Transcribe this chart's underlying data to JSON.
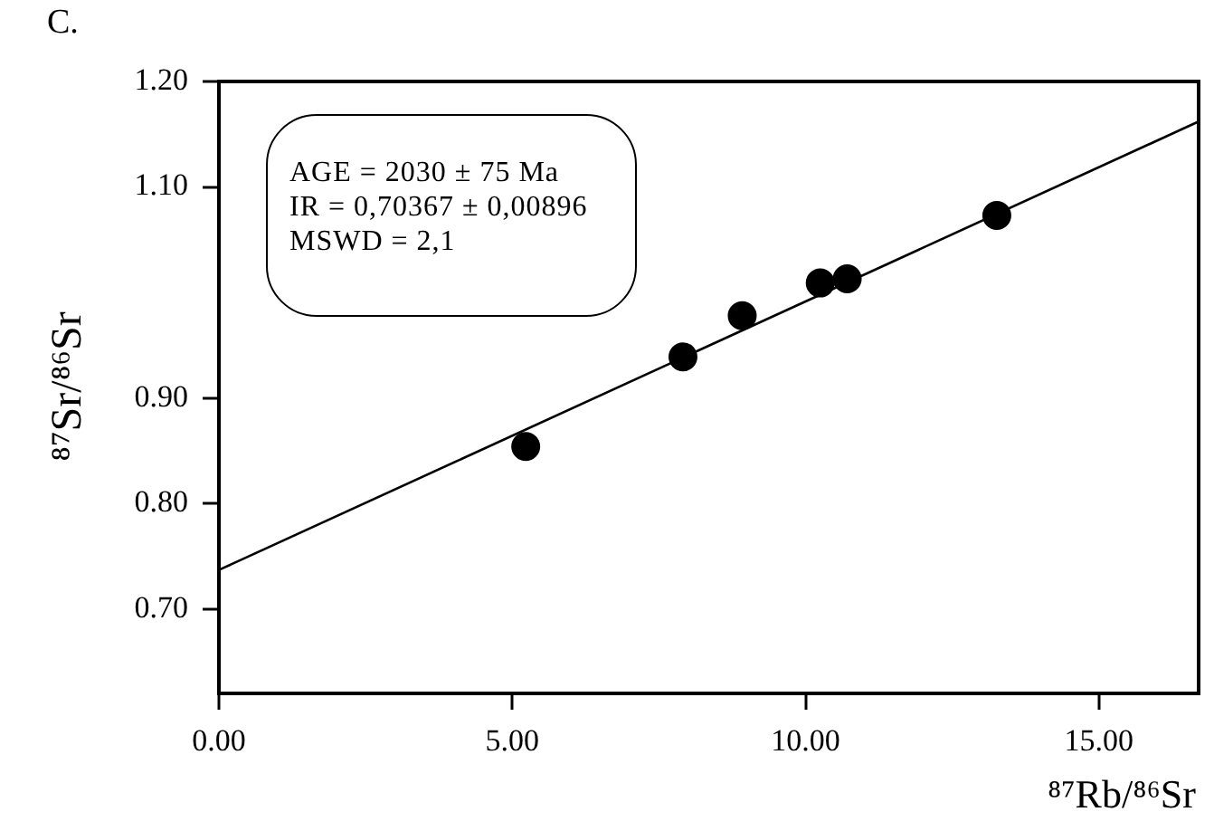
{
  "chart_data": {
    "type": "scatter",
    "title": "C.",
    "xlabel": "⁸⁷Rb/⁸⁶Sr",
    "ylabel": "⁸⁷Sr/⁸⁶Sr",
    "annotations": [
      "AGE = 2030 ± 75 Ma",
      "IR = 0,70367 ± 0,00896",
      "MSWD = 2,1"
    ],
    "series": [
      {
        "color": "#000000",
        "x": [
          5.23,
          7.91,
          8.92,
          10.25,
          10.71,
          13.26
        ],
        "values": [
          0.854,
          0.939,
          0.978,
          1.009,
          1.013,
          1.073
        ]
      },
      {
        "type": "line",
        "color": "#000000",
        "marker": "none",
        "x": [
          0,
          16.7
        ],
        "values": [
          0.737,
          1.162
        ]
      }
    ],
    "xlim": [
      0,
      16.7
    ],
    "xticks": [
      {
        "value": 0,
        "label": "0.00"
      },
      {
        "value": 5,
        "label": "5.00"
      },
      {
        "value": 10,
        "label": "10.00"
      },
      {
        "value": 15,
        "label": "15.00"
      }
    ],
    "ylim": [
      0.62,
      1.2
    ],
    "yticks": [
      {
        "value": 1.2,
        "label": "1.20"
      },
      {
        "value": 1.1,
        "label": "1.10"
      },
      {
        "value": 0.9,
        "label": "0.90"
      },
      {
        "value": 0.8,
        "label": "0.80"
      },
      {
        "value": 0.7,
        "label": "0.70"
      }
    ],
    "grid": false,
    "legend": false,
    "marker": "circle"
  }
}
